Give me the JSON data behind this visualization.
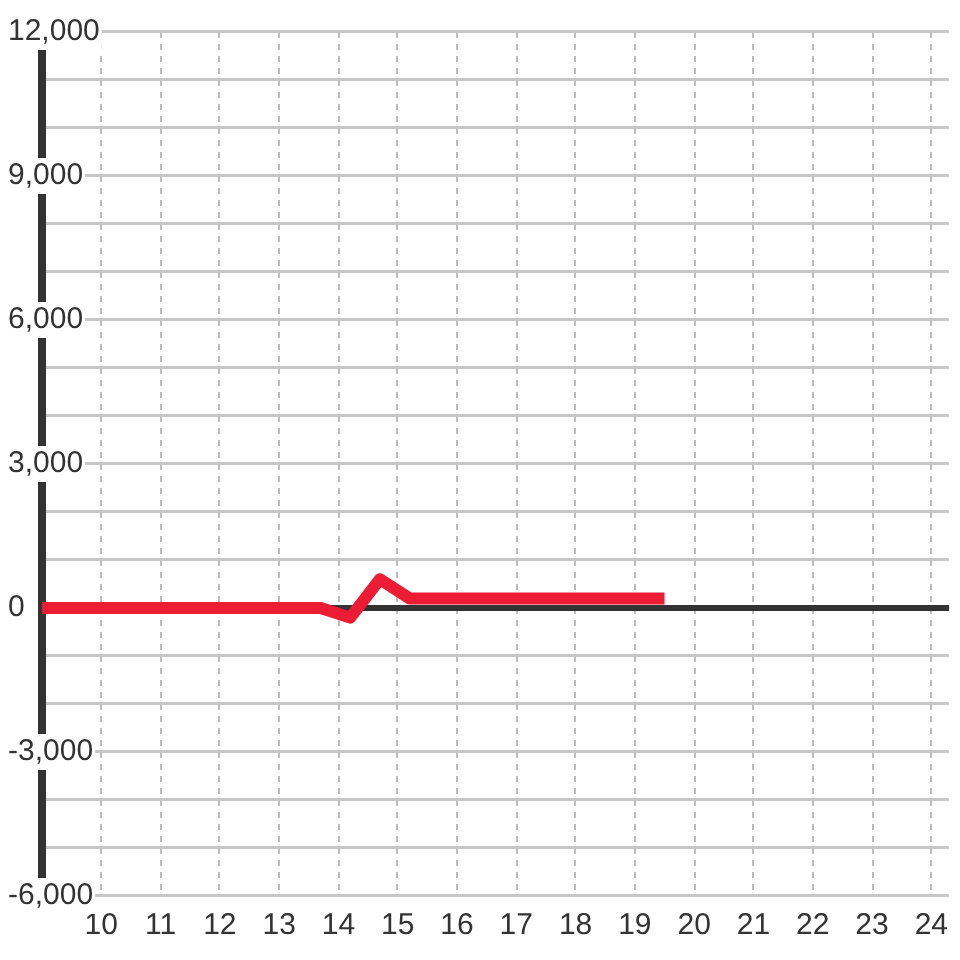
{
  "chart_data": {
    "type": "line",
    "x": [
      9,
      13.7,
      14.2,
      14.7,
      15.2,
      19.5
    ],
    "values": [
      0,
      0,
      -200,
      600,
      200,
      200
    ],
    "color": "#ec1c34",
    "xlim": [
      9,
      24.3
    ],
    "xticks": [
      10,
      11,
      12,
      13,
      14,
      15,
      16,
      17,
      18,
      19,
      20,
      21,
      22,
      23,
      24
    ],
    "ylim": [
      -6000,
      12000
    ],
    "yticks": [
      {
        "value": -6000,
        "label": "-6,000"
      },
      {
        "value": -5000,
        "label": null
      },
      {
        "value": -4000,
        "label": null
      },
      {
        "value": -3000,
        "label": "-3,000"
      },
      {
        "value": -2000,
        "label": null
      },
      {
        "value": -1000,
        "label": null
      },
      {
        "value": 0,
        "label": "0"
      },
      {
        "value": 1000,
        "label": null
      },
      {
        "value": 2000,
        "label": null
      },
      {
        "value": 3000,
        "label": "3,000"
      },
      {
        "value": 4000,
        "label": null
      },
      {
        "value": 5000,
        "label": null
      },
      {
        "value": 6000,
        "label": "6,000"
      },
      {
        "value": 7000,
        "label": null
      },
      {
        "value": 8000,
        "label": null
      },
      {
        "value": 9000,
        "label": "9,000"
      },
      {
        "value": 10000,
        "label": null
      },
      {
        "value": 11000,
        "label": null
      },
      {
        "value": 12000,
        "label": "12,000"
      }
    ],
    "grid": true,
    "ref_lines": [
      {
        "axis": "y",
        "value": 0,
        "color": "#333333"
      }
    ],
    "marker": "none",
    "line_style": "solid",
    "legend": false
  }
}
